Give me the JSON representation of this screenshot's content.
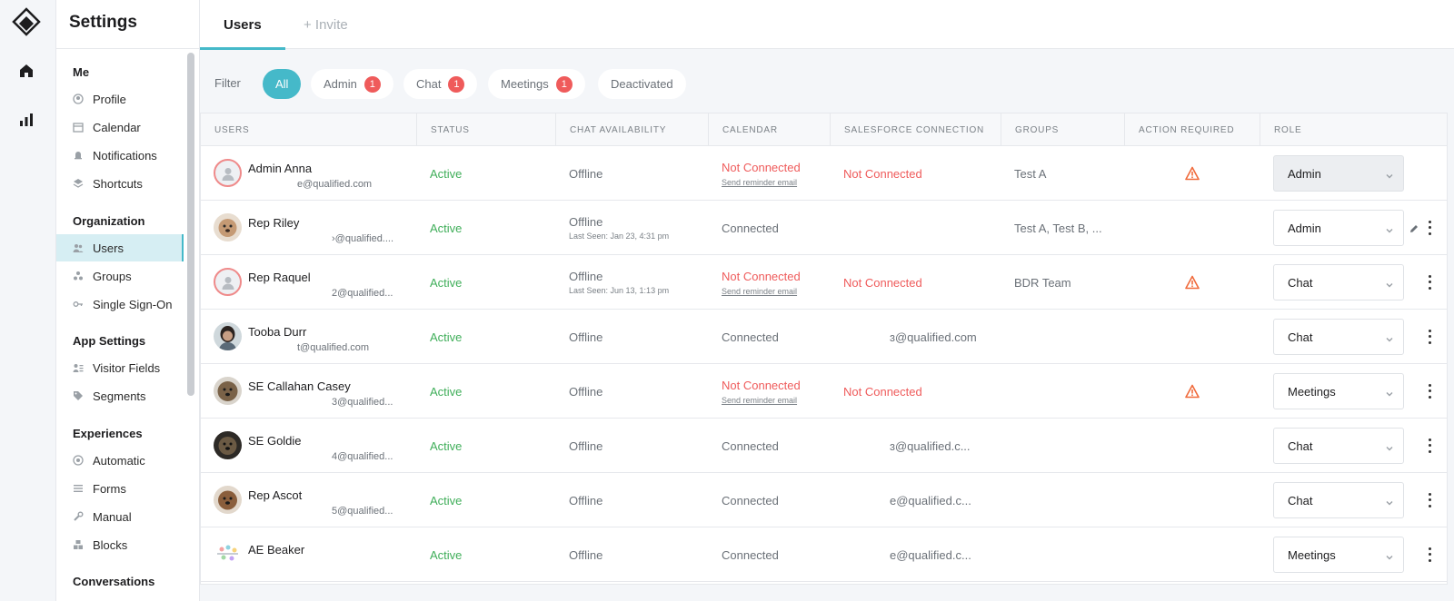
{
  "app": {
    "title": "Settings"
  },
  "rail": {
    "icons": [
      "logo-icon",
      "home-icon",
      "chart-icon"
    ]
  },
  "sidebar": {
    "sections": [
      {
        "title": "Me",
        "items": [
          {
            "label": "Profile",
            "icon": "user-circle-icon"
          },
          {
            "label": "Calendar",
            "icon": "calendar-icon"
          },
          {
            "label": "Notifications",
            "icon": "bell-icon"
          },
          {
            "label": "Shortcuts",
            "icon": "layers-icon"
          }
        ]
      },
      {
        "title": "Organization",
        "items": [
          {
            "label": "Users",
            "icon": "users-icon",
            "active": true
          },
          {
            "label": "Groups",
            "icon": "groups-icon"
          },
          {
            "label": "Single Sign-On",
            "icon": "key-icon"
          }
        ]
      },
      {
        "title": "App Settings",
        "items": [
          {
            "label": "Visitor Fields",
            "icon": "visitor-fields-icon"
          },
          {
            "label": "Segments",
            "icon": "tag-icon"
          }
        ]
      },
      {
        "title": "Experiences",
        "items": [
          {
            "label": "Automatic",
            "icon": "target-icon"
          },
          {
            "label": "Forms",
            "icon": "list-icon"
          },
          {
            "label": "Manual",
            "icon": "wrench-icon"
          },
          {
            "label": "Blocks",
            "icon": "blocks-icon"
          }
        ]
      },
      {
        "title": "Conversations",
        "items": []
      }
    ]
  },
  "tabs": [
    {
      "label": "Users",
      "active": true
    },
    {
      "label": "+ Invite",
      "active": false
    }
  ],
  "filter": {
    "label": "Filter",
    "chips": [
      {
        "label": "All",
        "active": true,
        "badge": ""
      },
      {
        "label": "Admin",
        "badge": "1"
      },
      {
        "label": "Chat",
        "badge": "1"
      },
      {
        "label": "Meetings",
        "badge": "1"
      },
      {
        "label": "Deactivated",
        "badge": ""
      }
    ]
  },
  "table": {
    "columns": [
      "USERS",
      "STATUS",
      "CHAT AVAILABILITY",
      "CALENDAR",
      "SALESFORCE CONNECTION",
      "GROUPS",
      "ACTION REQUIRED",
      "ROLE"
    ],
    "rows": [
      {
        "name": "Admin Anna",
        "email": "e@qualified.com",
        "avatar": "default",
        "status": "Active",
        "chat": "Offline",
        "chat_sub": "",
        "calendar": "Not Connected",
        "calendar_link": "Send reminder email",
        "salesforce": "Not Connected",
        "salesforce_red": true,
        "groups": "Test A",
        "action": true,
        "role": "Admin",
        "role_grey": true,
        "pencil": false,
        "kebab": false
      },
      {
        "name": "Rep Riley",
        "email": "›@qualified....",
        "avatar": "dog1",
        "status": "Active",
        "chat": "Offline",
        "chat_sub": "Last Seen: Jan 23, 4:31 pm",
        "calendar": "Connected",
        "calendar_link": "",
        "salesforce": "",
        "salesforce_red": false,
        "groups": "Test A, Test B, ...",
        "action": false,
        "role": "Admin",
        "role_grey": false,
        "pencil": true,
        "kebab": true
      },
      {
        "name": "Rep Raquel",
        "email": "2@qualified...",
        "avatar": "default",
        "status": "Active",
        "chat": "Offline",
        "chat_sub": "Last Seen: Jun 13, 1:13 pm",
        "calendar": "Not Connected",
        "calendar_link": "Send reminder email",
        "salesforce": "Not Connected",
        "salesforce_red": true,
        "groups": "BDR Team",
        "action": true,
        "role": "Chat",
        "role_grey": false,
        "pencil": false,
        "kebab": true
      },
      {
        "name": "Tooba Durr",
        "email": "t@qualified.com",
        "avatar": "woman",
        "status": "Active",
        "chat": "Offline",
        "chat_sub": "",
        "calendar": "Connected",
        "calendar_link": "",
        "salesforce": "ɜ@qualified.com",
        "salesforce_red": false,
        "groups": "",
        "action": false,
        "role": "Chat",
        "role_grey": false,
        "pencil": false,
        "kebab": true
      },
      {
        "name": "SE Callahan Casey",
        "email": "3@qualified...",
        "avatar": "dog2",
        "status": "Active",
        "chat": "Offline",
        "chat_sub": "",
        "calendar": "Not Connected",
        "calendar_link": "Send reminder email",
        "salesforce": "Not Connected",
        "salesforce_red": true,
        "groups": "",
        "action": true,
        "role": "Meetings",
        "role_grey": false,
        "pencil": false,
        "kebab": true
      },
      {
        "name": "SE Goldie",
        "email": "4@qualified...",
        "avatar": "dog3",
        "status": "Active",
        "chat": "Offline",
        "chat_sub": "",
        "calendar": "Connected",
        "calendar_link": "",
        "salesforce": "ɜ@qualified.c...",
        "salesforce_red": false,
        "groups": "",
        "action": false,
        "role": "Chat",
        "role_grey": false,
        "pencil": false,
        "kebab": true
      },
      {
        "name": "Rep Ascot",
        "email": "5@qualified...",
        "avatar": "dog4",
        "status": "Active",
        "chat": "Offline",
        "chat_sub": "",
        "calendar": "Connected",
        "calendar_link": "",
        "salesforce": "e@qualified.c...",
        "salesforce_red": false,
        "groups": "",
        "action": false,
        "role": "Chat",
        "role_grey": false,
        "pencil": false,
        "kebab": true
      },
      {
        "name": "AE Beaker",
        "email": "",
        "avatar": "beaker",
        "status": "Active",
        "chat": "Offline",
        "chat_sub": "",
        "calendar": "Connected",
        "calendar_link": "",
        "salesforce": "e@qualified.c...",
        "salesforce_red": false,
        "groups": "",
        "action": false,
        "role": "Meetings",
        "role_grey": false,
        "pencil": false,
        "kebab": true
      }
    ]
  },
  "colors": {
    "accent": "#45b9c9",
    "active_green": "#3fae59",
    "error_red": "#ef5b5b",
    "warning_orange": "#f06a3b"
  }
}
